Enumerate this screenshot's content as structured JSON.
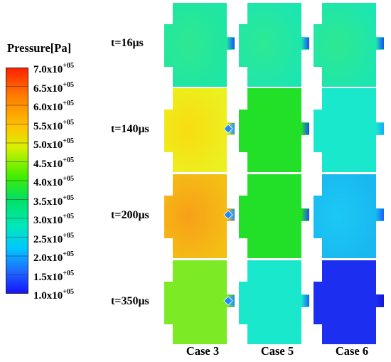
{
  "legend": {
    "title": "Pressure[Pa]",
    "ticks": [
      {
        "mant": "7.0x10",
        "exp": "+05",
        "value": 700000
      },
      {
        "mant": "6.5x10",
        "exp": "+05",
        "value": 650000
      },
      {
        "mant": "6.0x10",
        "exp": "+05",
        "value": 600000
      },
      {
        "mant": "5.5x10",
        "exp": "+05",
        "value": 550000
      },
      {
        "mant": "5.0x10",
        "exp": "+05",
        "value": 500000
      },
      {
        "mant": "4.5x10",
        "exp": "+05",
        "value": 450000
      },
      {
        "mant": "4.0x10",
        "exp": "+05",
        "value": 400000
      },
      {
        "mant": "3.5x10",
        "exp": "+05",
        "value": 350000
      },
      {
        "mant": "3.0x10",
        "exp": "+05",
        "value": 300000
      },
      {
        "mant": "2.5x10",
        "exp": "+05",
        "value": 250000
      },
      {
        "mant": "2.0x10",
        "exp": "+05",
        "value": 200000
      },
      {
        "mant": "1.5x10",
        "exp": "+05",
        "value": 150000
      },
      {
        "mant": "1.0x10",
        "exp": "+05",
        "value": 100000
      }
    ],
    "min": 100000,
    "max": 700000
  },
  "rows": [
    {
      "label": "t=16μs"
    },
    {
      "label": "t=140μs"
    },
    {
      "label": "t=200μs"
    },
    {
      "label": "t=350μs"
    }
  ],
  "columns": [
    {
      "label": "Case 3"
    },
    {
      "label": "Case 5"
    },
    {
      "label": "Case 6"
    }
  ],
  "panels": [
    [
      {
        "fill": "#1ee6a4",
        "center": "#2ee890",
        "nozzle": "#1a4cff",
        "valve": false
      },
      {
        "fill": "#1ce6b0",
        "center": "#2ee894",
        "nozzle": "#1a4cff",
        "valve": false
      },
      {
        "fill": "#1ce6b0",
        "center": "#2ee890",
        "nozzle": "#1a4cff",
        "valve": false
      }
    ],
    [
      {
        "fill": "#ecf020",
        "center": "#f8dc10",
        "nozzle": "#1a8cff",
        "valve": true
      },
      {
        "fill": "#22e028",
        "center": "#22e028",
        "nozzle": "#1a4cff",
        "valve": false
      },
      {
        "fill": "#1ae8cc",
        "center": "#1ae8cc",
        "nozzle": "#1aa8ff",
        "valve": false
      }
    ],
    [
      {
        "fill": "#f4be14",
        "center": "#f8a018",
        "nozzle": "#1a8cff",
        "valve": true
      },
      {
        "fill": "#22e028",
        "center": "#22e028",
        "nozzle": "#1a4cff",
        "valve": false
      },
      {
        "fill": "#18b8f0",
        "center": "#1cc8f4",
        "nozzle": "#1a60ff",
        "valve": false
      }
    ],
    [
      {
        "fill": "#7cea24",
        "center": "#7cea24",
        "nozzle": "#1a8cff",
        "valve": true
      },
      {
        "fill": "#1ae8cc",
        "center": "#1ae8cc",
        "nozzle": "#1a60ff",
        "valve": false
      },
      {
        "fill": "#1c2ef0",
        "center": "#1c2ef0",
        "nozzle": "#1414d8",
        "valve": false
      }
    ]
  ]
}
